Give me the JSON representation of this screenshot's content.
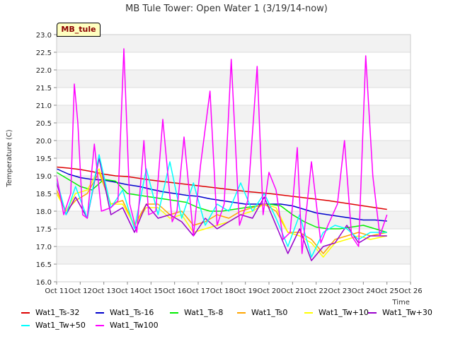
{
  "chart_data": {
    "type": "line",
    "title": "MB Tule Tower: Open Water 1 (3/19/14-now)",
    "xlabel": "Time",
    "ylabel": "Temperature (C)",
    "badge": "MB_tule",
    "xlim": [
      11,
      26
    ],
    "ylim": [
      16.0,
      23.0
    ],
    "x_ticks": [
      "Oct 11",
      "Oct 12",
      "Oct 13",
      "Oct 14",
      "Oct 15",
      "Oct 16",
      "Oct 17",
      "Oct 18",
      "Oct 19",
      "Oct 20",
      "Oct 21",
      "Oct 22",
      "Oct 23",
      "Oct 24",
      "Oct 25",
      "Oct 26"
    ],
    "y_ticks": [
      "16.0",
      "16.5",
      "17.0",
      "17.5",
      "18.0",
      "18.5",
      "19.0",
      "19.5",
      "20.0",
      "20.5",
      "21.0",
      "21.5",
      "22.0",
      "22.5",
      "23.0"
    ],
    "grid": true,
    "legend_position": "bottom",
    "series": [
      {
        "name": "Wat1_Ts-32",
        "color": "#dd0000",
        "x": [
          11.0,
          11.5,
          12.0,
          12.5,
          13.0,
          13.5,
          14.0,
          14.5,
          15.0,
          15.5,
          16.0,
          16.5,
          17.0,
          17.5,
          18.0,
          18.5,
          19.0,
          19.5,
          20.0,
          20.5,
          21.0,
          21.5,
          22.0,
          22.5,
          23.0,
          23.5,
          24.0,
          24.5,
          25.0
        ],
        "y": [
          19.25,
          19.22,
          19.18,
          19.12,
          19.05,
          19.0,
          18.98,
          18.93,
          18.88,
          18.84,
          18.8,
          18.76,
          18.72,
          18.68,
          18.64,
          18.6,
          18.56,
          18.53,
          18.5,
          18.46,
          18.42,
          18.38,
          18.34,
          18.3,
          18.25,
          18.2,
          18.15,
          18.1,
          18.05
        ]
      },
      {
        "name": "Wat1_Ts-16",
        "color": "#0000cc",
        "x": [
          11.0,
          11.5,
          12.0,
          12.5,
          13.0,
          13.5,
          14.0,
          14.5,
          15.0,
          15.5,
          16.0,
          16.5,
          17.0,
          17.5,
          18.0,
          18.5,
          19.0,
          19.5,
          20.0,
          20.5,
          21.0,
          21.5,
          22.0,
          22.5,
          23.0,
          23.5,
          24.0,
          24.5,
          25.0
        ],
        "y": [
          19.2,
          19.05,
          18.95,
          18.9,
          18.88,
          18.82,
          18.75,
          18.7,
          18.62,
          18.55,
          18.5,
          18.45,
          18.42,
          18.35,
          18.3,
          18.25,
          18.2,
          18.2,
          18.2,
          18.2,
          18.15,
          18.05,
          17.95,
          17.9,
          17.85,
          17.8,
          17.75,
          17.75,
          17.72
        ]
      },
      {
        "name": "Wat1_Ts-8",
        "color": "#00ee00",
        "x": [
          11.0,
          11.5,
          12.0,
          12.5,
          13.0,
          13.5,
          14.0,
          14.5,
          15.0,
          15.5,
          16.0,
          16.5,
          17.0,
          17.5,
          18.0,
          18.5,
          19.0,
          19.5,
          20.0,
          20.5,
          21.0,
          21.5,
          22.0,
          22.5,
          23.0,
          23.5,
          24.0,
          24.5,
          25.0
        ],
        "y": [
          19.1,
          18.9,
          18.7,
          18.6,
          18.9,
          18.85,
          18.5,
          18.45,
          18.4,
          18.35,
          18.3,
          18.25,
          18.1,
          18.0,
          18.0,
          18.05,
          18.1,
          18.15,
          18.2,
          18.15,
          17.9,
          17.7,
          17.55,
          17.5,
          17.5,
          17.55,
          17.6,
          17.5,
          17.4
        ]
      },
      {
        "name": "Wat1_Ts0",
        "color": "#ffa500",
        "x": [
          11.0,
          11.4,
          11.8,
          12.3,
          12.8,
          13.3,
          13.8,
          14.3,
          14.8,
          15.3,
          15.8,
          16.3,
          16.8,
          17.3,
          17.8,
          18.3,
          18.8,
          19.3,
          19.8,
          20.3,
          20.8,
          21.3,
          21.8,
          22.3,
          22.8,
          23.3,
          23.8,
          24.3,
          25.0
        ],
        "y": [
          18.6,
          18.0,
          18.3,
          18.5,
          19.1,
          18.2,
          18.3,
          17.6,
          18.2,
          18.2,
          17.9,
          18.0,
          17.6,
          17.7,
          17.9,
          17.8,
          18.0,
          18.1,
          18.2,
          18.0,
          17.4,
          17.4,
          17.2,
          16.8,
          17.2,
          17.3,
          17.4,
          17.3,
          17.4
        ]
      },
      {
        "name": "Wat1_Tw+10",
        "color": "#ffff00",
        "x": [
          11.0,
          11.4,
          11.8,
          12.3,
          12.8,
          13.3,
          13.8,
          14.3,
          14.8,
          15.3,
          15.8,
          16.3,
          16.8,
          17.3,
          17.8,
          18.3,
          18.8,
          19.3,
          19.8,
          20.3,
          20.8,
          21.3,
          21.8,
          22.3,
          22.8,
          23.3,
          23.8,
          24.3,
          25.0
        ],
        "y": [
          18.5,
          18.0,
          18.5,
          18.6,
          19.2,
          18.2,
          18.2,
          17.6,
          18.1,
          18.1,
          17.8,
          17.9,
          17.4,
          17.5,
          17.6,
          17.7,
          17.9,
          18.0,
          18.2,
          18.1,
          17.4,
          17.3,
          17.1,
          16.7,
          17.1,
          17.2,
          17.3,
          17.2,
          17.3
        ]
      },
      {
        "name": "Wat1_Tw+30",
        "color": "#9900cc",
        "x": [
          11.0,
          11.4,
          11.8,
          12.3,
          12.8,
          13.3,
          13.8,
          14.3,
          14.8,
          15.3,
          15.8,
          16.3,
          16.8,
          17.3,
          17.8,
          18.3,
          18.8,
          19.3,
          19.8,
          20.3,
          20.8,
          21.3,
          21.8,
          22.3,
          22.8,
          23.3,
          23.8,
          24.3,
          25.0
        ],
        "y": [
          18.8,
          17.9,
          18.4,
          17.8,
          19.5,
          17.9,
          18.1,
          17.4,
          18.2,
          17.8,
          17.9,
          17.7,
          17.3,
          17.8,
          17.5,
          17.7,
          17.9,
          17.8,
          18.4,
          17.6,
          16.8,
          17.5,
          16.6,
          17.0,
          17.1,
          17.6,
          17.1,
          17.3,
          17.3
        ]
      },
      {
        "name": "Wat1_Tw+50",
        "color": "#00ffff",
        "x": [
          11.0,
          11.4,
          11.8,
          12.3,
          12.8,
          13.3,
          13.8,
          14.3,
          14.8,
          15.3,
          15.8,
          16.3,
          16.8,
          17.3,
          17.8,
          18.3,
          18.8,
          19.3,
          19.8,
          20.3,
          20.8,
          21.3,
          21.8,
          22.3,
          22.8,
          23.3,
          23.8,
          24.3,
          25.0
        ],
        "y": [
          18.9,
          17.9,
          18.7,
          17.8,
          19.6,
          18.1,
          18.6,
          17.5,
          19.2,
          17.9,
          19.4,
          17.8,
          18.8,
          17.6,
          18.2,
          18.0,
          18.8,
          18.0,
          18.5,
          17.8,
          17.0,
          17.9,
          16.7,
          17.4,
          17.6,
          17.5,
          17.2,
          17.4,
          17.4
        ]
      },
      {
        "name": "Wat1_Tw100",
        "color": "#ff00ff",
        "x": [
          11.0,
          11.3,
          11.6,
          11.75,
          11.9,
          12.1,
          12.3,
          12.6,
          12.9,
          13.3,
          13.6,
          13.85,
          14.1,
          14.4,
          14.7,
          14.9,
          15.2,
          15.5,
          15.9,
          16.1,
          16.4,
          16.8,
          17.1,
          17.5,
          17.8,
          18.1,
          18.4,
          18.75,
          19.1,
          19.5,
          19.75,
          20.0,
          20.3,
          20.6,
          20.9,
          21.2,
          21.4,
          21.8,
          22.2,
          22.5,
          22.9,
          23.2,
          23.5,
          23.8,
          24.1,
          24.4,
          24.7,
          25.0
        ],
        "y": [
          19.0,
          17.9,
          18.5,
          21.6,
          20.5,
          17.9,
          17.8,
          19.9,
          18.0,
          18.1,
          18.3,
          22.6,
          18.2,
          17.4,
          20.0,
          17.9,
          18.0,
          20.6,
          17.7,
          18.0,
          20.1,
          17.3,
          19.3,
          21.4,
          17.6,
          18.2,
          22.3,
          17.6,
          18.3,
          22.1,
          17.9,
          19.1,
          18.6,
          17.2,
          17.4,
          19.8,
          16.8,
          19.4,
          17.1,
          17.6,
          18.2,
          20.0,
          17.3,
          17.0,
          22.4,
          19.0,
          17.3,
          17.9
        ]
      }
    ]
  }
}
